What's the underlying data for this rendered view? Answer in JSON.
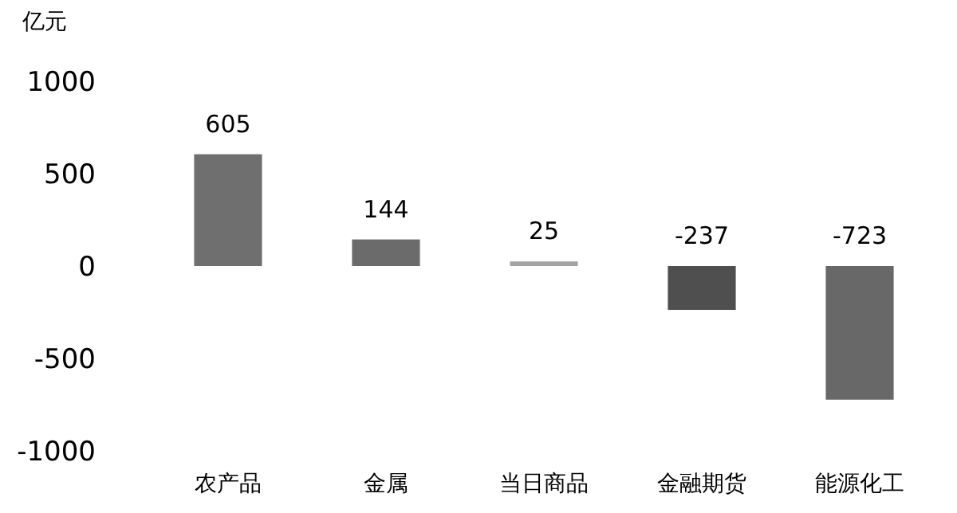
{
  "chart_data": {
    "type": "bar",
    "ylabel": "亿元",
    "categories": [
      "农产品",
      "金属",
      "当日商品",
      "金融期货",
      "能源化工"
    ],
    "values": [
      605,
      144,
      25,
      -237,
      -723
    ],
    "colors": [
      "#6f6f6f",
      "#6b6b6b",
      "#a3a3a3",
      "#4f4f4f",
      "#686868"
    ],
    "ylim": [
      -1000,
      1000
    ],
    "yticks": [
      -1000,
      -500,
      0,
      500,
      1000
    ],
    "data_labels": true
  }
}
